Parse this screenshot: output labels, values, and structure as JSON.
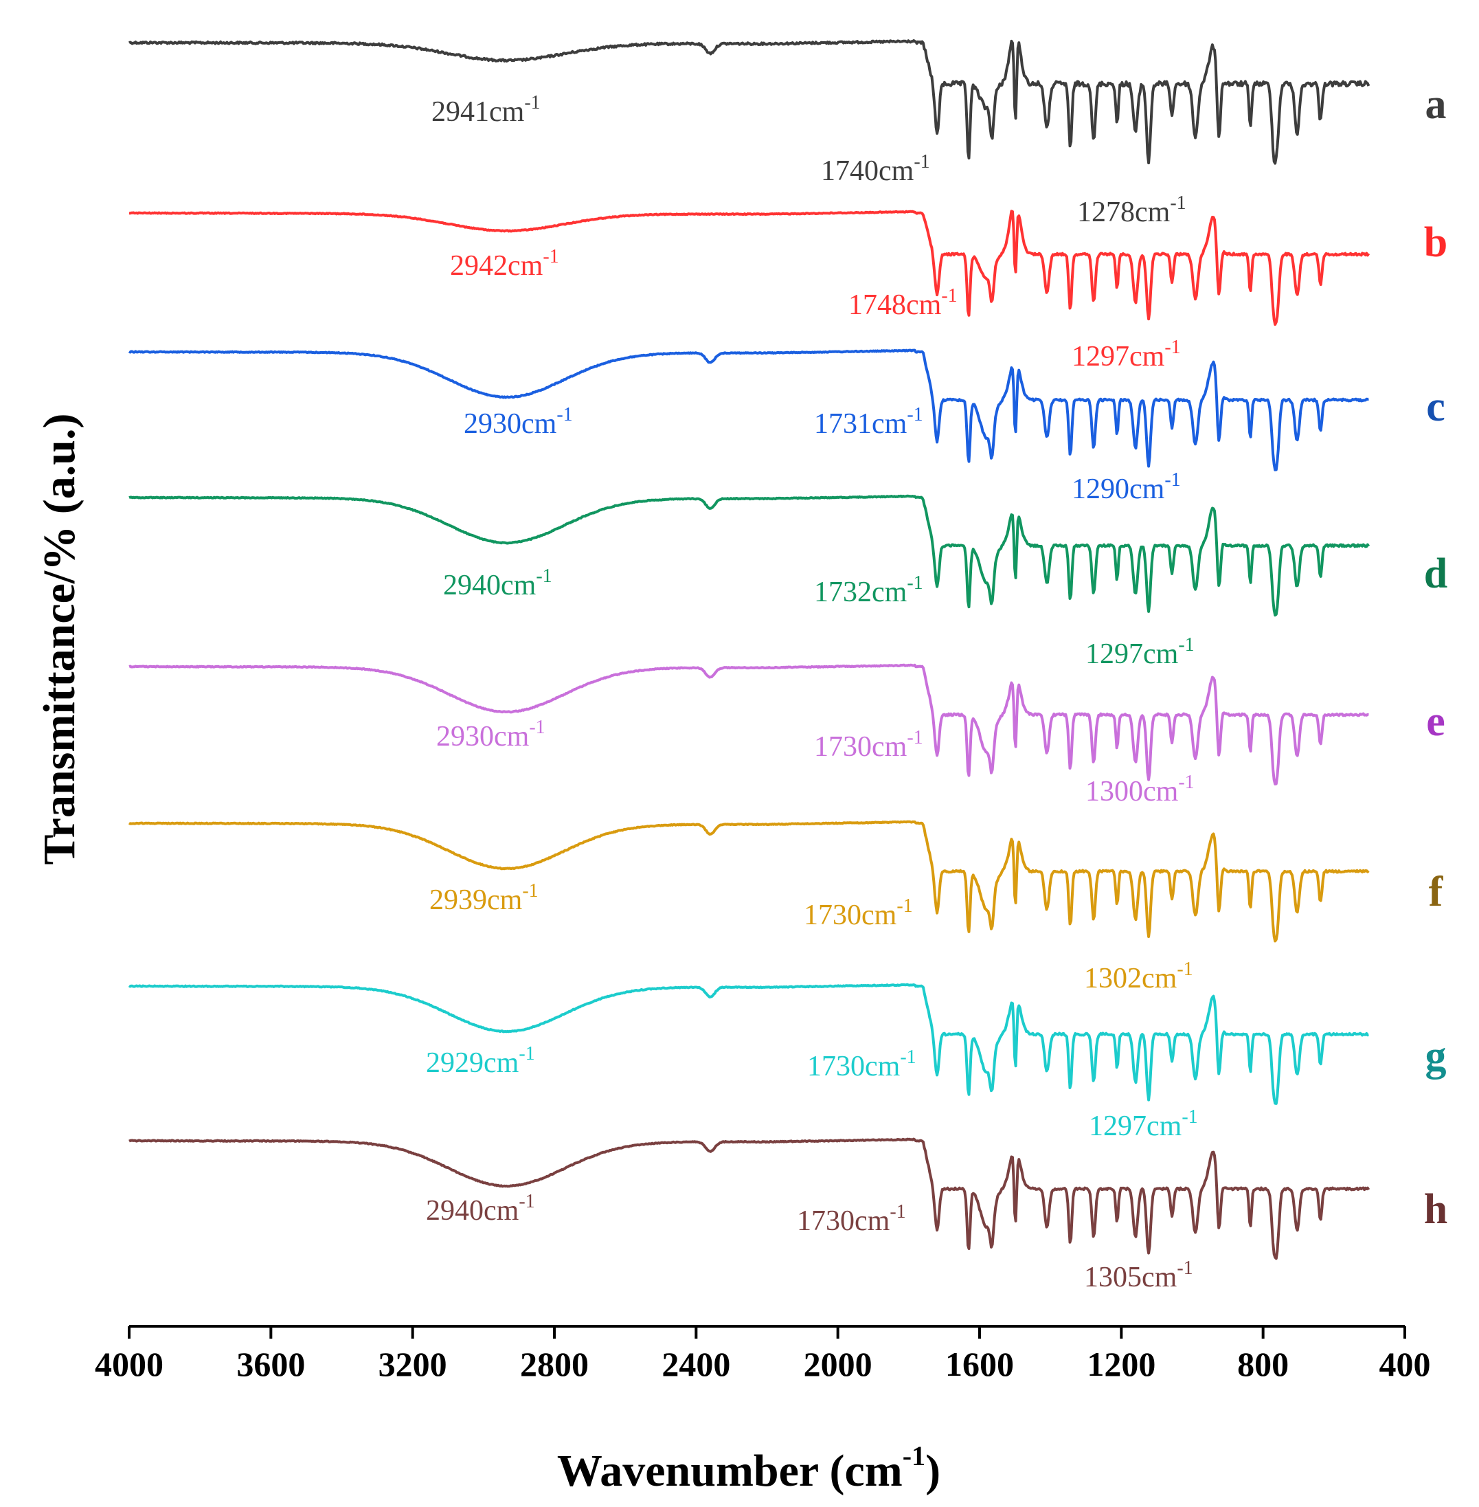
{
  "chart_data": {
    "type": "line",
    "title": "",
    "xlabel": "Wavenumber (cm",
    "xlabel_sup": "-1",
    "xlabel_close": ")",
    "ylabel": "Transmittance/% (a.u.)",
    "xlim": [
      4000,
      400
    ],
    "x_reversed": true,
    "xticks": [
      4000,
      3600,
      3200,
      2800,
      2400,
      2000,
      1600,
      1200,
      800,
      400
    ],
    "xtick_labels": [
      "4000",
      "3600",
      "3200",
      "2800",
      "2400",
      "2000",
      "1600",
      "1200",
      "800",
      "400"
    ],
    "yticks_shown": false,
    "grid": false,
    "legend": "right-side letter labels",
    "unit_suffix": "cm",
    "unit_sup": "-1",
    "series": [
      {
        "name": "a",
        "color": "#3d3d3d",
        "variant": "sharp",
        "noise": 0.7,
        "peaks": [
          {
            "value": 2941,
            "label": "2941"
          },
          {
            "value": 1740,
            "label": "1740"
          },
          {
            "value": 1278,
            "label": "1278"
          }
        ]
      },
      {
        "name": "b",
        "color": "#ff3333",
        "variant": "sharp",
        "noise": 0.3,
        "peaks": [
          {
            "value": 2942,
            "label": "2942"
          },
          {
            "value": 1748,
            "label": "1748"
          },
          {
            "value": 1297,
            "label": "1297"
          }
        ]
      },
      {
        "name": "c",
        "color": "#1a5fe0",
        "variant": "broad",
        "noise": 0.3,
        "peaks": [
          {
            "value": 2930,
            "label": "2930"
          },
          {
            "value": 1731,
            "label": "1731"
          },
          {
            "value": 1290,
            "label": "1290"
          }
        ]
      },
      {
        "name": "d",
        "color": "#119660",
        "variant": "broad",
        "noise": 0.3,
        "peaks": [
          {
            "value": 2940,
            "label": "2940"
          },
          {
            "value": 1732,
            "label": "1732"
          },
          {
            "value": 1297,
            "label": "1297"
          }
        ]
      },
      {
        "name": "e",
        "color": "#c970db",
        "variant": "broad",
        "noise": 0.3,
        "peaks": [
          {
            "value": 2930,
            "label": "2930"
          },
          {
            "value": 1730,
            "label": "1730"
          },
          {
            "value": 1300,
            "label": "1300"
          }
        ]
      },
      {
        "name": "f",
        "color": "#d99b0f",
        "variant": "broad",
        "noise": 0.3,
        "peaks": [
          {
            "value": 2939,
            "label": "2939"
          },
          {
            "value": 1730,
            "label": "1730"
          },
          {
            "value": 1302,
            "label": "1302"
          }
        ]
      },
      {
        "name": "g",
        "color": "#1ccccc",
        "variant": "broad",
        "noise": 0.3,
        "peaks": [
          {
            "value": 2929,
            "label": "2929"
          },
          {
            "value": 1730,
            "label": "1730"
          },
          {
            "value": 1297,
            "label": "1297"
          }
        ]
      },
      {
        "name": "h",
        "color": "#7a4040",
        "variant": "broad",
        "noise": 0.3,
        "peaks": [
          {
            "value": 2940,
            "label": "2940"
          },
          {
            "value": 1730,
            "label": "1730"
          },
          {
            "value": 1305,
            "label": "1305"
          }
        ]
      }
    ],
    "label_colors": {
      "a": "#3d3d3d",
      "b": "#ff3333",
      "c": "#1a5fe0",
      "d": "#119660",
      "e": "#c970db",
      "f": "#d99b0f",
      "g": "#1ccccc",
      "h": "#7a4040"
    },
    "letter_colors": {
      "a": "#3d3d3d",
      "b": "#ff2a2a",
      "c": "#1650b0",
      "d": "#0e7a4e",
      "e": "#a636c4",
      "f": "#8a6512",
      "g": "#138f8f",
      "h": "#6a3232"
    }
  }
}
